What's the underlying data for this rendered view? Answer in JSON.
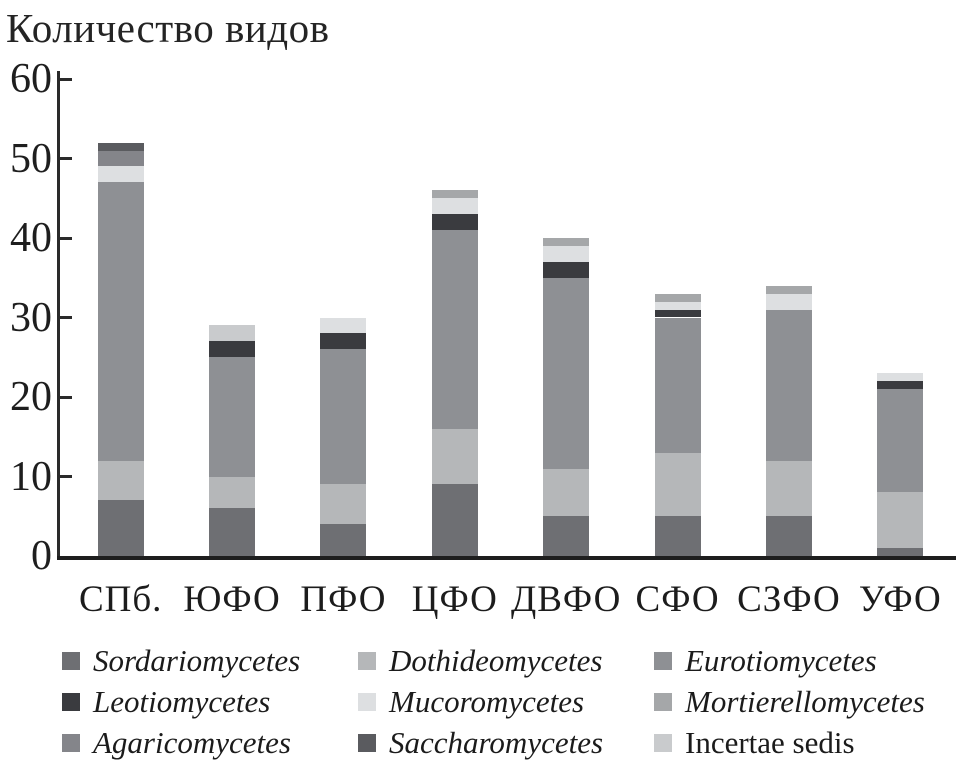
{
  "chart_data": {
    "type": "bar",
    "stacked": true,
    "title": "Количество видов",
    "categories": [
      "СПб.",
      "ЮФО",
      "ПФО",
      "ЦФО",
      "ДВФО",
      "СФО",
      "СЗФО",
      "УФО"
    ],
    "series": [
      {
        "name": "Sordariomycetes",
        "color": "#6e6f73",
        "italic": true,
        "values": [
          7,
          6,
          4,
          9,
          5,
          5,
          5,
          1
        ]
      },
      {
        "name": "Dothideomycetes",
        "color": "#b5b7b9",
        "italic": true,
        "values": [
          5,
          4,
          5,
          7,
          6,
          8,
          7,
          7
        ]
      },
      {
        "name": "Eurotiomycetes",
        "color": "#8e9094",
        "italic": true,
        "values": [
          35,
          15,
          17,
          25,
          24,
          17,
          19,
          13
        ]
      },
      {
        "name": "Leotiomycetes",
        "color": "#3a3b3f",
        "italic": true,
        "values": [
          0,
          2,
          2,
          2,
          2,
          1,
          0,
          1
        ]
      },
      {
        "name": "Mucoromycetes",
        "color": "#dddfe1",
        "italic": true,
        "values": [
          2,
          0,
          2,
          2,
          2,
          1,
          2,
          1
        ]
      },
      {
        "name": "Mortierellomycetes",
        "color": "#a5a7a9",
        "italic": true,
        "values": [
          0,
          0,
          0,
          1,
          1,
          1,
          1,
          0
        ]
      },
      {
        "name": "Agaricomycetes",
        "color": "#84858a",
        "italic": true,
        "values": [
          2,
          0,
          0,
          0,
          0,
          0,
          0,
          0
        ]
      },
      {
        "name": "Saccharomycetes",
        "color": "#5a5b5f",
        "italic": true,
        "values": [
          1,
          0,
          0,
          0,
          0,
          0,
          0,
          0
        ]
      },
      {
        "name": "Incertae sedis",
        "color": "#c9cbcd",
        "italic": false,
        "values": [
          0,
          2,
          0,
          0,
          0,
          0,
          0,
          0
        ]
      }
    ],
    "totals": [
      52,
      29,
      30,
      46,
      40,
      33,
      34,
      23
    ],
    "ylim": [
      0,
      60
    ],
    "yticks": [
      0,
      10,
      20,
      30,
      40,
      50,
      60
    ],
    "grid": false,
    "legend_position": "bottom",
    "legend_order": [
      "Sordariomycetes",
      "Dothideomycetes",
      "Eurotiomycetes",
      "Leotiomycetes",
      "Mucoromycetes",
      "Mortierellomycetes",
      "Agaricomycetes",
      "Saccharomycetes",
      "Incertae sedis"
    ]
  }
}
